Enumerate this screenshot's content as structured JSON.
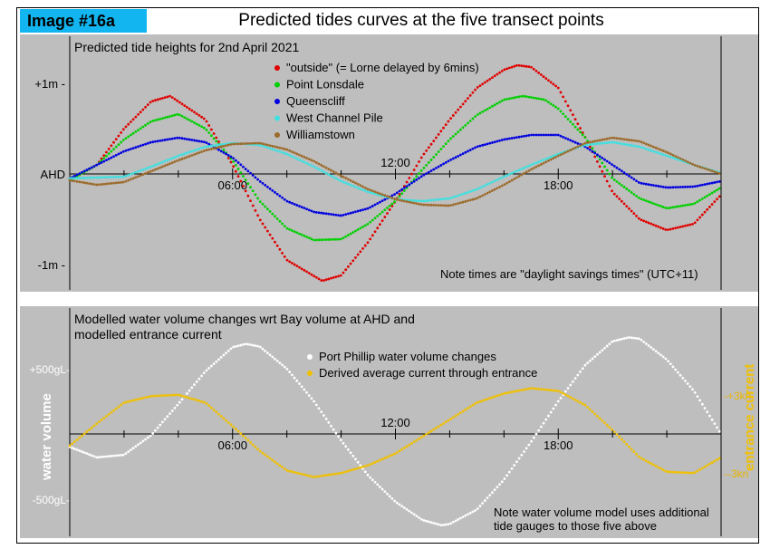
{
  "header": {
    "badge": "Image #16a",
    "title": "Predicted tides curves at the five transect points"
  },
  "colors": {
    "panel_bg": "#bebebe",
    "badge_bg": "#12b5ef",
    "current_axis": "#e8b400"
  },
  "chart_data": [
    {
      "type": "line",
      "title": "Predicted tide heights for 2nd April 2021",
      "note": "Note times are \"daylight savings times\" (UTC+11)",
      "x_unit": "hours",
      "xlim": [
        0,
        24
      ],
      "x_ticks": [
        {
          "value": 6,
          "label": "06:00",
          "position": "below"
        },
        {
          "value": 12,
          "label": "12:00",
          "position": "above"
        },
        {
          "value": 18,
          "label": "18:00",
          "position": "below"
        }
      ],
      "x_minor_ticks": [
        2,
        4,
        8,
        10,
        14,
        16,
        20,
        22
      ],
      "ylim": [
        -1.25,
        1.1
      ],
      "y_ticks": [
        {
          "value": 1,
          "label": "+1m -"
        },
        {
          "value": 0,
          "label": "AHD"
        },
        {
          "value": -1,
          "label": "-1m -"
        }
      ],
      "legend_position": "top-center",
      "series": [
        {
          "name": "\"outside\" (= Lorne delayed by 6mins)",
          "color": "#e00000",
          "points": [
            [
              0,
              -0.07
            ],
            [
              1,
              0.1
            ],
            [
              2,
              0.5
            ],
            [
              3,
              0.8
            ],
            [
              3.7,
              0.86
            ],
            [
              5,
              0.6
            ],
            [
              6,
              0.1
            ],
            [
              7,
              -0.5
            ],
            [
              8,
              -0.95
            ],
            [
              9.3,
              -1.18
            ],
            [
              10,
              -1.12
            ],
            [
              11,
              -0.75
            ],
            [
              12,
              -0.3
            ],
            [
              13,
              0.2
            ],
            [
              14,
              0.6
            ],
            [
              15,
              0.95
            ],
            [
              16,
              1.15
            ],
            [
              16.5,
              1.2
            ],
            [
              17,
              1.18
            ],
            [
              18,
              0.95
            ],
            [
              19,
              0.4
            ],
            [
              20,
              -0.2
            ],
            [
              21,
              -0.5
            ],
            [
              22,
              -0.62
            ],
            [
              23,
              -0.55
            ],
            [
              24,
              -0.23
            ]
          ]
        },
        {
          "name": "Point Lonsdale",
          "color": "#00d000",
          "points": [
            [
              0,
              -0.07
            ],
            [
              1,
              0.1
            ],
            [
              2,
              0.38
            ],
            [
              3,
              0.58
            ],
            [
              4,
              0.66
            ],
            [
              5,
              0.5
            ],
            [
              6,
              0.15
            ],
            [
              7,
              -0.3
            ],
            [
              8,
              -0.6
            ],
            [
              9,
              -0.73
            ],
            [
              10,
              -0.72
            ],
            [
              11,
              -0.55
            ],
            [
              12,
              -0.3
            ],
            [
              13,
              0.05
            ],
            [
              14,
              0.38
            ],
            [
              15,
              0.65
            ],
            [
              16,
              0.82
            ],
            [
              16.7,
              0.86
            ],
            [
              17.5,
              0.82
            ],
            [
              18,
              0.72
            ],
            [
              19,
              0.4
            ],
            [
              20,
              -0.05
            ],
            [
              21,
              -0.27
            ],
            [
              22,
              -0.38
            ],
            [
              23,
              -0.33
            ],
            [
              24,
              -0.15
            ]
          ]
        },
        {
          "name": "Queenscliff",
          "color": "#0000e0",
          "points": [
            [
              0,
              -0.05
            ],
            [
              1,
              0.1
            ],
            [
              2,
              0.25
            ],
            [
              3,
              0.35
            ],
            [
              4,
              0.4
            ],
            [
              5,
              0.35
            ],
            [
              6,
              0.18
            ],
            [
              7,
              -0.08
            ],
            [
              8,
              -0.3
            ],
            [
              9,
              -0.42
            ],
            [
              10,
              -0.46
            ],
            [
              11,
              -0.38
            ],
            [
              12,
              -0.22
            ],
            [
              13,
              -0.02
            ],
            [
              14,
              0.15
            ],
            [
              15,
              0.3
            ],
            [
              16,
              0.38
            ],
            [
              17,
              0.43
            ],
            [
              18,
              0.43
            ],
            [
              19,
              0.3
            ],
            [
              20,
              0.1
            ],
            [
              21,
              -0.1
            ],
            [
              22,
              -0.15
            ],
            [
              23,
              -0.14
            ],
            [
              24,
              -0.08
            ]
          ]
        },
        {
          "name": "West Channel Pile",
          "color": "#40e0e0",
          "points": [
            [
              0,
              -0.05
            ],
            [
              1,
              -0.04
            ],
            [
              2,
              -0.03
            ],
            [
              3,
              0.08
            ],
            [
              4,
              0.2
            ],
            [
              5,
              0.3
            ],
            [
              6,
              0.34
            ],
            [
              7,
              0.32
            ],
            [
              8,
              0.22
            ],
            [
              9,
              0.08
            ],
            [
              10,
              -0.08
            ],
            [
              11,
              -0.2
            ],
            [
              12,
              -0.28
            ],
            [
              13,
              -0.3
            ],
            [
              14,
              -0.27
            ],
            [
              15,
              -0.17
            ],
            [
              16,
              -0.03
            ],
            [
              17,
              0.1
            ],
            [
              18,
              0.22
            ],
            [
              19,
              0.32
            ],
            [
              20,
              0.35
            ],
            [
              21,
              0.3
            ],
            [
              22,
              0.2
            ],
            [
              23,
              0.1
            ],
            [
              24,
              0.01
            ]
          ]
        },
        {
          "name": "Williamstown",
          "color": "#9c6a2a",
          "points": [
            [
              0,
              -0.07
            ],
            [
              1,
              -0.12
            ],
            [
              2,
              -0.09
            ],
            [
              3,
              0.03
            ],
            [
              4,
              0.15
            ],
            [
              5,
              0.26
            ],
            [
              6,
              0.33
            ],
            [
              7,
              0.34
            ],
            [
              8,
              0.27
            ],
            [
              9,
              0.14
            ],
            [
              10,
              -0.02
            ],
            [
              11,
              -0.17
            ],
            [
              12,
              -0.28
            ],
            [
              13,
              -0.34
            ],
            [
              14,
              -0.35
            ],
            [
              15,
              -0.27
            ],
            [
              16,
              -0.12
            ],
            [
              17,
              0.05
            ],
            [
              18,
              0.2
            ],
            [
              19,
              0.34
            ],
            [
              20,
              0.4
            ],
            [
              21,
              0.36
            ],
            [
              22,
              0.24
            ],
            [
              23,
              0.1
            ],
            [
              24,
              0
            ]
          ]
        }
      ]
    },
    {
      "type": "line",
      "title": "Modelled water volume changes wrt Bay volume at AHD and",
      "title2": "modelled entrance current",
      "note": "Note water volume model uses additional",
      "note2": "tide gauges to those five above",
      "x_unit": "hours",
      "xlim": [
        0,
        24
      ],
      "x_ticks": [
        {
          "value": 6,
          "label": "06:00",
          "position": "below"
        },
        {
          "value": 12,
          "label": "12:00",
          "position": "above"
        },
        {
          "value": 18,
          "label": "18:00",
          "position": "below"
        }
      ],
      "x_minor_ticks": [
        2,
        4,
        8,
        10,
        14,
        16,
        20,
        22
      ],
      "ylabel_left": "water volume",
      "ylabel_right": "entrance current",
      "left_ylim": [
        -900,
        900
      ],
      "left_ticks": [
        {
          "value": 500,
          "label": "+500gL-"
        },
        {
          "value": -500,
          "label": "-500gL-"
        }
      ],
      "right_ylim": [
        -3.6,
        3.6
      ],
      "right_ticks": [
        {
          "value": 3,
          "label": "+3kn"
        },
        {
          "value": -3,
          "label": "-3kn"
        }
      ],
      "legend_position": "top-center",
      "series": [
        {
          "name": "Port Phillip water volume changes",
          "color": "#ffffff",
          "axis": "left",
          "points": [
            [
              0,
              -100
            ],
            [
              1,
              -180
            ],
            [
              2,
              -160
            ],
            [
              3,
              -10
            ],
            [
              4,
              230
            ],
            [
              5,
              480
            ],
            [
              6,
              665
            ],
            [
              6.5,
              690
            ],
            [
              7,
              670
            ],
            [
              8,
              500
            ],
            [
              9,
              250
            ],
            [
              10,
              -50
            ],
            [
              11,
              -320
            ],
            [
              12,
              -520
            ],
            [
              13,
              -660
            ],
            [
              13.7,
              -700
            ],
            [
              14,
              -690
            ],
            [
              15,
              -580
            ],
            [
              16,
              -350
            ],
            [
              17,
              -60
            ],
            [
              18,
              250
            ],
            [
              19,
              530
            ],
            [
              20,
              710
            ],
            [
              20.6,
              740
            ],
            [
              21,
              730
            ],
            [
              22,
              570
            ],
            [
              23,
              330
            ],
            [
              24,
              0
            ]
          ]
        },
        {
          "name": "Derived average current through entrance",
          "color": "#f0c000",
          "axis": "left",
          "points": [
            [
              0,
              -90
            ],
            [
              1,
              80
            ],
            [
              2,
              240
            ],
            [
              3,
              290
            ],
            [
              4,
              300
            ],
            [
              5,
              240
            ],
            [
              6,
              60
            ],
            [
              7,
              -130
            ],
            [
              8,
              -280
            ],
            [
              9,
              -330
            ],
            [
              10,
              -300
            ],
            [
              11,
              -240
            ],
            [
              12,
              -150
            ],
            [
              13,
              -20
            ],
            [
              14,
              110
            ],
            [
              15,
              240
            ],
            [
              16,
              310
            ],
            [
              17,
              350
            ],
            [
              18,
              330
            ],
            [
              19,
              220
            ],
            [
              20,
              30
            ],
            [
              21,
              -180
            ],
            [
              22,
              -290
            ],
            [
              23,
              -300
            ],
            [
              24,
              -180
            ]
          ]
        }
      ]
    }
  ]
}
